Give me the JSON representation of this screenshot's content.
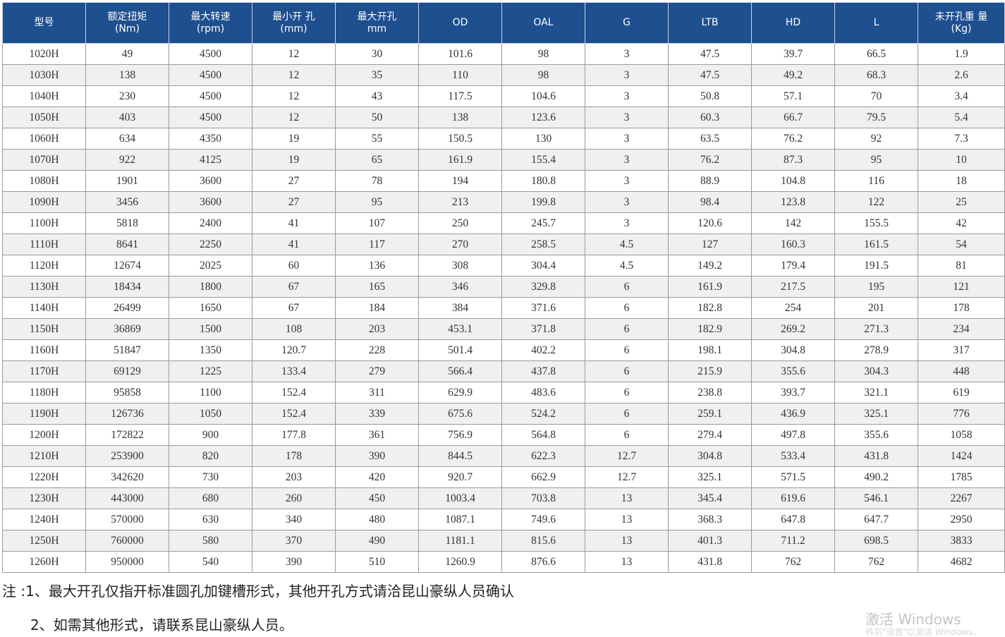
{
  "table": {
    "headers": [
      [
        "型号"
      ],
      [
        "额定扭矩",
        "(Nm)"
      ],
      [
        "最大转速",
        "(rpm)"
      ],
      [
        "最小开 孔",
        "(mm)"
      ],
      [
        "最大开孔",
        "mm"
      ],
      [
        "OD"
      ],
      [
        "OAL"
      ],
      [
        "G"
      ],
      [
        "LTB"
      ],
      [
        "HD"
      ],
      [
        "L"
      ],
      [
        "未开孔重 量",
        "(Kg)"
      ]
    ],
    "rows": [
      [
        "1020H",
        "49",
        "4500",
        "12",
        "30",
        "101.6",
        "98",
        "3",
        "47.5",
        "39.7",
        "66.5",
        "1.9"
      ],
      [
        "1030H",
        "138",
        "4500",
        "12",
        "35",
        "110",
        "98",
        "3",
        "47.5",
        "49.2",
        "68.3",
        "2.6"
      ],
      [
        "1040H",
        "230",
        "4500",
        "12",
        "43",
        "117.5",
        "104.6",
        "3",
        "50.8",
        "57.1",
        "70",
        "3.4"
      ],
      [
        "1050H",
        "403",
        "4500",
        "12",
        "50",
        "138",
        "123.6",
        "3",
        "60.3",
        "66.7",
        "79.5",
        "5.4"
      ],
      [
        "1060H",
        "634",
        "4350",
        "19",
        "55",
        "150.5",
        "130",
        "3",
        "63.5",
        "76.2",
        "92",
        "7.3"
      ],
      [
        "1070H",
        "922",
        "4125",
        "19",
        "65",
        "161.9",
        "155.4",
        "3",
        "76.2",
        "87.3",
        "95",
        "10"
      ],
      [
        "1080H",
        "1901",
        "3600",
        "27",
        "78",
        "194",
        "180.8",
        "3",
        "88.9",
        "104.8",
        "116",
        "18"
      ],
      [
        "1090H",
        "3456",
        "3600",
        "27",
        "95",
        "213",
        "199.8",
        "3",
        "98.4",
        "123.8",
        "122",
        "25"
      ],
      [
        "1100H",
        "5818",
        "2400",
        "41",
        "107",
        "250",
        "245.7",
        "3",
        "120.6",
        "142",
        "155.5",
        "42"
      ],
      [
        "1110H",
        "8641",
        "2250",
        "41",
        "117",
        "270",
        "258.5",
        "4.5",
        "127",
        "160.3",
        "161.5",
        "54"
      ],
      [
        "1120H",
        "12674",
        "2025",
        "60",
        "136",
        "308",
        "304.4",
        "4.5",
        "149.2",
        "179.4",
        "191.5",
        "81"
      ],
      [
        "1130H",
        "18434",
        "1800",
        "67",
        "165",
        "346",
        "329.8",
        "6",
        "161.9",
        "217.5",
        "195",
        "121"
      ],
      [
        "1140H",
        "26499",
        "1650",
        "67",
        "184",
        "384",
        "371.6",
        "6",
        "182.8",
        "254",
        "201",
        "178"
      ],
      [
        "1150H",
        "36869",
        "1500",
        "108",
        "203",
        "453.1",
        "371.8",
        "6",
        "182.9",
        "269.2",
        "271.3",
        "234"
      ],
      [
        "1160H",
        "51847",
        "1350",
        "120.7",
        "228",
        "501.4",
        "402.2",
        "6",
        "198.1",
        "304.8",
        "278.9",
        "317"
      ],
      [
        "1170H",
        "69129",
        "1225",
        "133.4",
        "279",
        "566.4",
        "437.8",
        "6",
        "215.9",
        "355.6",
        "304.3",
        "448"
      ],
      [
        "1180H",
        "95858",
        "1100",
        "152.4",
        "311",
        "629.9",
        "483.6",
        "6",
        "238.8",
        "393.7",
        "321.1",
        "619"
      ],
      [
        "1190H",
        "126736",
        "1050",
        "152.4",
        "339",
        "675.6",
        "524.2",
        "6",
        "259.1",
        "436.9",
        "325.1",
        "776"
      ],
      [
        "1200H",
        "172822",
        "900",
        "177.8",
        "361",
        "756.9",
        "564.8",
        "6",
        "279.4",
        "497.8",
        "355.6",
        "1058"
      ],
      [
        "1210H",
        "253900",
        "820",
        "178",
        "390",
        "844.5",
        "622.3",
        "12.7",
        "304.8",
        "533.4",
        "431.8",
        "1424"
      ],
      [
        "1220H",
        "342620",
        "730",
        "203",
        "420",
        "920.7",
        "662.9",
        "12.7",
        "325.1",
        "571.5",
        "490.2",
        "1785"
      ],
      [
        "1230H",
        "443000",
        "680",
        "260",
        "450",
        "1003.4",
        "703.8",
        "13",
        "345.4",
        "619.6",
        "546.1",
        "2267"
      ],
      [
        "1240H",
        "570000",
        "630",
        "340",
        "480",
        "1087.1",
        "749.6",
        "13",
        "368.3",
        "647.8",
        "647.7",
        "2950"
      ],
      [
        "1250H",
        "760000",
        "580",
        "370",
        "490",
        "1181.1",
        "815.6",
        "13",
        "401.3",
        "711.2",
        "698.5",
        "3833"
      ],
      [
        "1260H",
        "950000",
        "540",
        "390",
        "510",
        "1260.9",
        "876.6",
        "13",
        "431.8",
        "762",
        "762",
        "4682"
      ]
    ]
  },
  "notes": {
    "line1": "注 :1、最大开孔仅指开标准圆孔加键槽形式，其他开孔方式请洽昆山豪纵人员确认",
    "line2": "2、如需其他形式，请联系昆山豪纵人员。"
  },
  "watermark": {
    "title": "激活 Windows",
    "subtitle": "转到\"设置\"以激活 Windows。"
  },
  "colors": {
    "header_bg": "#1e4f8f",
    "header_text": "#ffffff",
    "stripe_bg": "#f0f0f0"
  }
}
